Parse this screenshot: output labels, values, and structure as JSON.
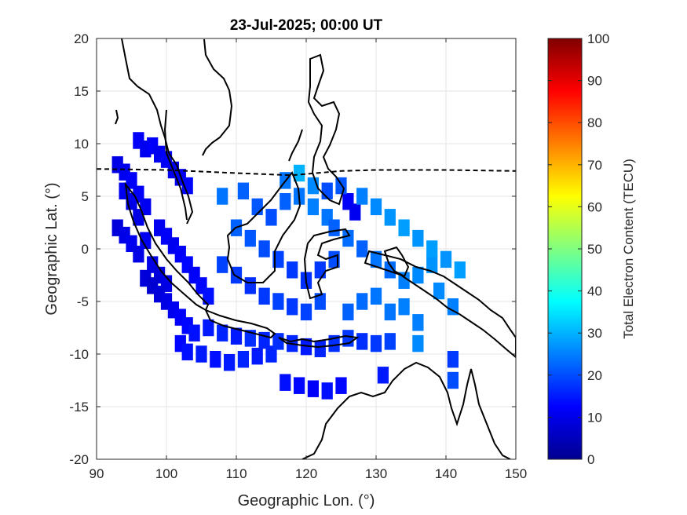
{
  "chart_data": {
    "type": "heatmap",
    "title": "23-Jul-2025; 00:00 UT",
    "xlabel": "Geographic Lon. (°)",
    "ylabel": "Geographic Lat. (°)",
    "colorbar_label": "Total Electron Content (TECU)",
    "xlim": [
      90,
      150
    ],
    "ylim": [
      -20,
      20
    ],
    "clim": [
      0,
      100
    ],
    "xticks": [
      "90",
      "100",
      "110",
      "120",
      "130",
      "140",
      "150"
    ],
    "yticks": [
      "20",
      "15",
      "10",
      "5",
      "0",
      "-5",
      "-10",
      "-15",
      "-20"
    ],
    "cbticks": [
      "100",
      "90",
      "80",
      "70",
      "60",
      "50",
      "40",
      "30",
      "20",
      "10",
      "0"
    ],
    "grid": true,
    "colormap": "jet",
    "overlays": [
      "coastlines",
      "magnetic equator (dashed)"
    ],
    "magnetic_equator": [
      [
        90,
        7.6
      ],
      [
        100,
        7.5
      ],
      [
        110,
        7.2
      ],
      [
        118,
        7.0
      ],
      [
        125,
        7.4
      ],
      [
        130,
        7.5
      ],
      [
        140,
        7.5
      ],
      [
        150,
        7.4
      ]
    ],
    "tec_cells": [
      [
        96,
        10.3,
        12
      ],
      [
        97,
        9.5,
        11
      ],
      [
        98,
        9.8,
        12
      ],
      [
        99,
        9.0,
        11
      ],
      [
        100,
        8.5,
        12
      ],
      [
        101,
        7.5,
        11
      ],
      [
        102,
        6.8,
        12
      ],
      [
        103,
        6.0,
        13
      ],
      [
        93,
        8.0,
        10
      ],
      [
        94,
        7.3,
        11
      ],
      [
        95,
        6.5,
        12
      ],
      [
        94,
        5.5,
        11
      ],
      [
        95,
        4.5,
        10
      ],
      [
        96,
        5.2,
        12
      ],
      [
        97,
        4.0,
        11
      ],
      [
        96,
        3.0,
        10
      ],
      [
        93,
        2.0,
        9
      ],
      [
        94,
        1.3,
        10
      ],
      [
        95,
        0.5,
        11
      ],
      [
        96,
        -0.5,
        10
      ],
      [
        97,
        0.8,
        11
      ],
      [
        98,
        -1.5,
        10
      ],
      [
        99,
        -2.5,
        9
      ],
      [
        100,
        -3.3,
        10
      ],
      [
        97,
        -2.8,
        9
      ],
      [
        98,
        -3.5,
        8
      ],
      [
        99,
        -4.3,
        9
      ],
      [
        100,
        -5.0,
        10
      ],
      [
        101,
        -5.8,
        11
      ],
      [
        102,
        -6.5,
        12
      ],
      [
        103,
        -7.3,
        13
      ],
      [
        104,
        -8.0,
        14
      ],
      [
        99,
        2.0,
        11
      ],
      [
        100,
        1.2,
        12
      ],
      [
        101,
        0.3,
        11
      ],
      [
        102,
        -0.5,
        12
      ],
      [
        103,
        -1.5,
        13
      ],
      [
        104,
        -2.5,
        12
      ],
      [
        105,
        -3.5,
        13
      ],
      [
        106,
        -4.5,
        14
      ],
      [
        102,
        -9.0,
        13
      ],
      [
        103,
        -9.8,
        14
      ],
      [
        105,
        -10.0,
        15
      ],
      [
        107,
        -10.5,
        14
      ],
      [
        109,
        -10.8,
        15
      ],
      [
        111,
        -10.5,
        16
      ],
      [
        113,
        -10.2,
        15
      ],
      [
        115,
        -10.0,
        16
      ],
      [
        106,
        -7.5,
        15
      ],
      [
        108,
        -8.0,
        16
      ],
      [
        110,
        -8.3,
        15
      ],
      [
        112,
        -8.5,
        17
      ],
      [
        114,
        -8.7,
        16
      ],
      [
        116,
        -8.8,
        17
      ],
      [
        118,
        -9.0,
        16
      ],
      [
        120,
        -9.3,
        15
      ],
      [
        122,
        -9.5,
        16
      ],
      [
        124,
        -9.0,
        17
      ],
      [
        126,
        -8.5,
        18
      ],
      [
        128,
        -8.8,
        17
      ],
      [
        130,
        -9.0,
        18
      ],
      [
        132,
        -8.8,
        19
      ],
      [
        136,
        -9.0,
        26
      ],
      [
        141,
        -10.5,
        18
      ],
      [
        117,
        -12.7,
        14
      ],
      [
        119,
        -13.0,
        13
      ],
      [
        121,
        -13.3,
        12
      ],
      [
        123,
        -13.5,
        14
      ],
      [
        125,
        -13.0,
        13
      ],
      [
        131,
        -12.0,
        15
      ],
      [
        141,
        -12.5,
        20
      ],
      [
        108,
        5.0,
        24
      ],
      [
        111,
        5.5,
        22
      ],
      [
        113,
        4.0,
        21
      ],
      [
        115,
        3.0,
        20
      ],
      [
        117,
        4.5,
        22
      ],
      [
        119,
        5.0,
        24
      ],
      [
        121,
        4.0,
        25
      ],
      [
        123,
        3.0,
        24
      ],
      [
        110,
        2.0,
        22
      ],
      [
        112,
        1.0,
        21
      ],
      [
        114,
        0.0,
        20
      ],
      [
        116,
        -1.0,
        19
      ],
      [
        118,
        -2.0,
        18
      ],
      [
        120,
        -3.0,
        17
      ],
      [
        122,
        -2.0,
        18
      ],
      [
        124,
        -1.0,
        20
      ],
      [
        108,
        -1.5,
        19
      ],
      [
        110,
        -2.5,
        18
      ],
      [
        112,
        -3.5,
        17
      ],
      [
        114,
        -4.5,
        18
      ],
      [
        116,
        -5.0,
        19
      ],
      [
        118,
        -5.5,
        18
      ],
      [
        120,
        -6.0,
        19
      ],
      [
        122,
        -5.0,
        20
      ],
      [
        124,
        2.0,
        22
      ],
      [
        126,
        1.0,
        23
      ],
      [
        128,
        0.0,
        22
      ],
      [
        130,
        -1.0,
        24
      ],
      [
        132,
        -2.0,
        23
      ],
      [
        134,
        -3.0,
        25
      ],
      [
        136,
        -2.5,
        26
      ],
      [
        138,
        -1.5,
        27
      ],
      [
        126,
        4.5,
        12
      ],
      [
        127,
        3.5,
        11
      ],
      [
        128,
        5.0,
        25
      ],
      [
        130,
        4.0,
        26
      ],
      [
        132,
        3.0,
        27
      ],
      [
        134,
        2.0,
        28
      ],
      [
        136,
        1.0,
        27
      ],
      [
        138,
        0.0,
        28
      ],
      [
        140,
        -1.0,
        27
      ],
      [
        142,
        -2.0,
        28
      ],
      [
        139,
        -4.0,
        26
      ],
      [
        141,
        -5.5,
        25
      ],
      [
        136,
        -7.0,
        25
      ],
      [
        126,
        -6.0,
        22
      ],
      [
        128,
        -5.0,
        23
      ],
      [
        130,
        -4.5,
        24
      ],
      [
        132,
        -6.0,
        24
      ],
      [
        134,
        -5.5,
        25
      ],
      [
        123,
        5.5,
        20
      ],
      [
        125,
        6.0,
        21
      ],
      [
        119,
        7.2,
        30
      ],
      [
        121,
        6.0,
        26
      ],
      [
        117,
        6.5,
        24
      ]
    ]
  }
}
